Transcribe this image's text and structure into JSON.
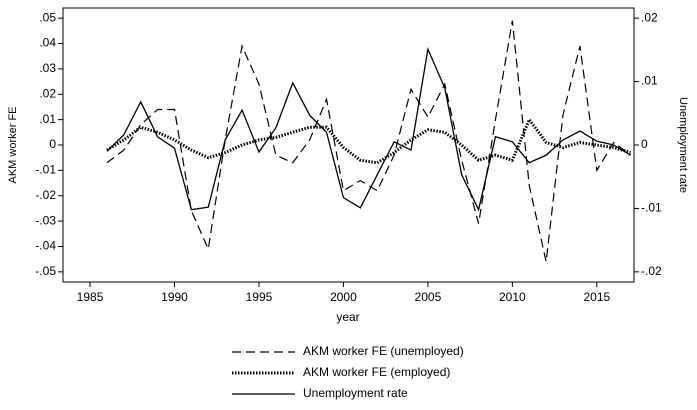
{
  "chart_data": {
    "type": "line",
    "xlabel": "year",
    "ylabel": "AKM worker FE",
    "y2label": "Unemployment rate",
    "x": [
      1986,
      1987,
      1988,
      1989,
      1990,
      1991,
      1992,
      1993,
      1994,
      1995,
      1996,
      1997,
      1998,
      1999,
      2000,
      2001,
      2002,
      2003,
      2004,
      2005,
      2006,
      2007,
      2008,
      2009,
      2010,
      2011,
      2012,
      2013,
      2014,
      2015,
      2016,
      2017
    ],
    "series": [
      {
        "name": "AKM worker FE (unemployed)",
        "color": "#000000",
        "linestyle": "dashed",
        "axis": "y",
        "values": [
          -0.007,
          -0.002,
          0.008,
          0.014,
          0.014,
          -0.026,
          -0.041,
          0.002,
          0.039,
          0.024,
          -0.004,
          -0.007,
          0.002,
          0.018,
          -0.018,
          -0.014,
          -0.018,
          -0.004,
          0.022,
          0.011,
          0.024,
          -0.006,
          -0.031,
          0.01,
          0.049,
          -0.016,
          -0.046,
          0.012,
          0.039,
          -0.01,
          0.001,
          -0.004
        ]
      },
      {
        "name": "AKM worker FE (employed)",
        "color": "#000000",
        "linestyle": "dotted",
        "axis": "y",
        "values": [
          -0.002,
          0.002,
          0.007,
          0.005,
          0.002,
          -0.002,
          -0.005,
          -0.003,
          0,
          0.002,
          0.003,
          0.005,
          0.007,
          0.007,
          -0.001,
          -0.006,
          -0.007,
          -0.003,
          0.002,
          0.006,
          0.005,
          0,
          -0.006,
          -0.004,
          -0.006,
          0.01,
          0.001,
          -0.001,
          0.001,
          0,
          -0.001,
          -0.003
        ]
      },
      {
        "name": "Unemployment rate",
        "color": "#000000",
        "linestyle": "solid",
        "axis": "y2",
        "values": [
          -0.001,
          0.0016,
          0.0068,
          0.0013,
          -0.0005,
          -0.0102,
          -0.0098,
          0.0008,
          0.0055,
          -0.0011,
          0.0027,
          0.0098,
          0.0047,
          0.002,
          -0.0083,
          -0.0099,
          -0.0047,
          0.0005,
          -0.0008,
          0.0151,
          0.009,
          -0.0047,
          -0.0102,
          0.0013,
          0.0005,
          -0.0028,
          -0.0016,
          0.0008,
          0.0022,
          0.0006,
          0,
          -0.0016
        ]
      }
    ],
    "xlim": [
      1983.4,
      2017.2
    ],
    "xticks": [
      1985,
      1990,
      1995,
      2000,
      2005,
      2010,
      2015
    ],
    "ylim": [
      -0.054,
      0.054
    ],
    "yticks": [
      {
        "value": -0.05,
        "label": "-.05"
      },
      {
        "value": -0.04,
        "label": "-.04"
      },
      {
        "value": -0.03,
        "label": "-.03"
      },
      {
        "value": -0.02,
        "label": "-.02"
      },
      {
        "value": -0.01,
        "label": "-.01"
      },
      0,
      {
        "value": 0.01,
        "label": ".01"
      },
      {
        "value": 0.02,
        "label": ".02"
      },
      {
        "value": 0.03,
        "label": ".03"
      },
      {
        "value": 0.04,
        "label": ".04"
      },
      {
        "value": 0.05,
        "label": ".05"
      }
    ],
    "y2lim": [
      -0.0216,
      0.0216
    ],
    "y2ticks": [
      {
        "value": -0.02,
        "label": "-.02"
      },
      {
        "value": -0.01,
        "label": "-.01"
      },
      0,
      {
        "value": 0.01,
        "label": ".01"
      },
      {
        "value": 0.02,
        "label": ".02"
      }
    ],
    "legend": "bottom"
  }
}
